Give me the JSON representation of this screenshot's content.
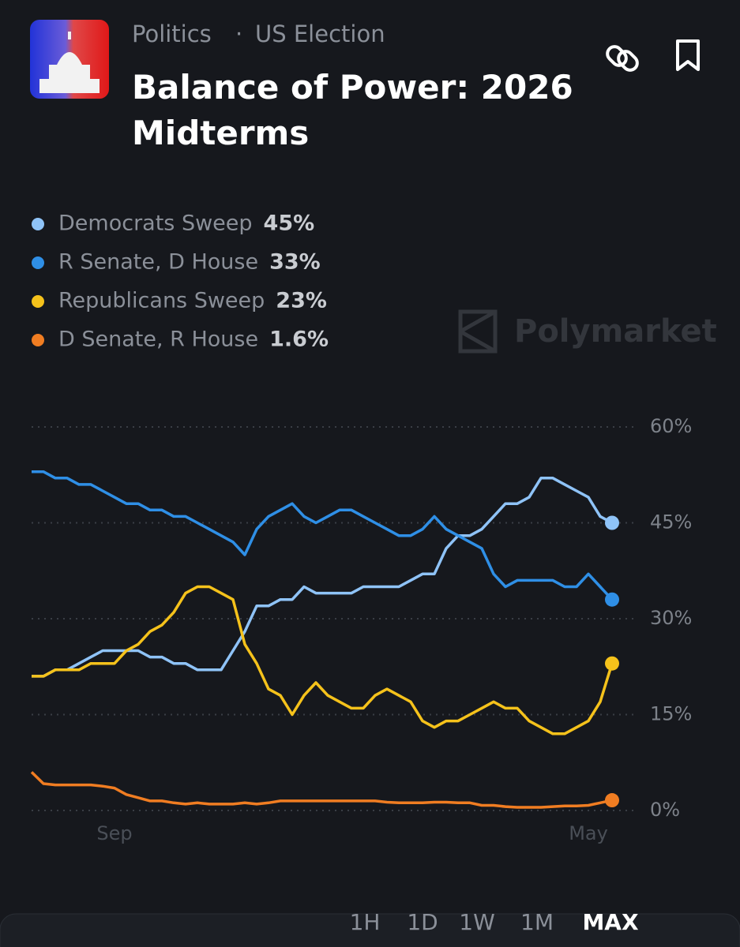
{
  "header": {
    "category": "Politics",
    "subcategory": "US Election",
    "watermark": "Polymarket",
    "ranges": [
      "1H",
      "1D",
      "1W",
      "1M",
      "MAX"
    ]
  },
  "chart_data": {
    "type": "line",
    "title": "Balance of Power: 2026 Midterms",
    "categories": [
      null,
      null,
      null,
      null,
      null,
      null,
      null,
      "Sep",
      null,
      null,
      null,
      null,
      null,
      null,
      null,
      null,
      null,
      null,
      null,
      null,
      null,
      null,
      null,
      null,
      null,
      null,
      null,
      null,
      null,
      null,
      null,
      null,
      null,
      null,
      null,
      null,
      null,
      null,
      null,
      null,
      null,
      null,
      null,
      null,
      null,
      null,
      null,
      "May",
      null,
      null
    ],
    "ylim": [
      0,
      60
    ],
    "yticks": [
      {
        "value": 0,
        "label": "0%"
      },
      {
        "value": 15,
        "label": "15%"
      },
      {
        "value": 30,
        "label": "30%"
      },
      {
        "value": 45,
        "label": "45%"
      },
      {
        "value": 60,
        "label": "60%"
      }
    ],
    "grid": true,
    "series": [
      {
        "name": "Democrats Sweep",
        "color": "#8fc3f7",
        "current": {
          "value": 45,
          "label": "45%"
        },
        "values": [
          21,
          21,
          22,
          22,
          23,
          24,
          25,
          25,
          25,
          25,
          24,
          24,
          23,
          23,
          22,
          22,
          22,
          25,
          28,
          32,
          32,
          33,
          33,
          35,
          34,
          34,
          34,
          34,
          35,
          35,
          35,
          35,
          36,
          37,
          37,
          41,
          43,
          43,
          44,
          46,
          48,
          48,
          49,
          52,
          52,
          51,
          50,
          49,
          46,
          45
        ]
      },
      {
        "name": "R Senate, D House",
        "color": "#2f8fe6",
        "current": {
          "value": 33,
          "label": "33%"
        },
        "values": [
          53,
          53,
          52,
          52,
          51,
          51,
          50,
          49,
          48,
          48,
          47,
          47,
          46,
          46,
          45,
          44,
          43,
          42,
          40,
          44,
          46,
          47,
          48,
          46,
          45,
          46,
          47,
          47,
          46,
          45,
          44,
          43,
          43,
          44,
          46,
          44,
          43,
          42,
          41,
          37,
          35,
          36,
          36,
          36,
          36,
          35,
          35,
          37,
          35,
          33
        ]
      },
      {
        "name": "Republicans Sweep",
        "color": "#f5c21b",
        "current": {
          "value": 23,
          "label": "23%"
        },
        "values": [
          21,
          21,
          22,
          22,
          22,
          23,
          23,
          23,
          25,
          26,
          28,
          29,
          31,
          34,
          35,
          35,
          34,
          33,
          26,
          23,
          19,
          18,
          15,
          18,
          20,
          18,
          17,
          16,
          16,
          18,
          19,
          18,
          17,
          14,
          13,
          14,
          14,
          15,
          16,
          17,
          16,
          16,
          14,
          13,
          12,
          12,
          13,
          14,
          17,
          23
        ]
      },
      {
        "name": "D Senate, R House",
        "color": "#f07d22",
        "current": {
          "value": 1.6,
          "label": "1.6%"
        },
        "values": [
          6,
          4.2,
          4,
          4,
          4,
          4,
          3.8,
          3.5,
          2.5,
          2,
          1.5,
          1.5,
          1.2,
          1,
          1.2,
          1,
          1,
          1,
          1.2,
          1,
          1.2,
          1.5,
          1.5,
          1.5,
          1.5,
          1.5,
          1.5,
          1.5,
          1.5,
          1.5,
          1.3,
          1.2,
          1.2,
          1.2,
          1.3,
          1.3,
          1.2,
          1.2,
          0.8,
          0.8,
          0.6,
          0.5,
          0.5,
          0.5,
          0.6,
          0.7,
          0.7,
          0.8,
          1.2,
          1.6
        ]
      }
    ]
  }
}
